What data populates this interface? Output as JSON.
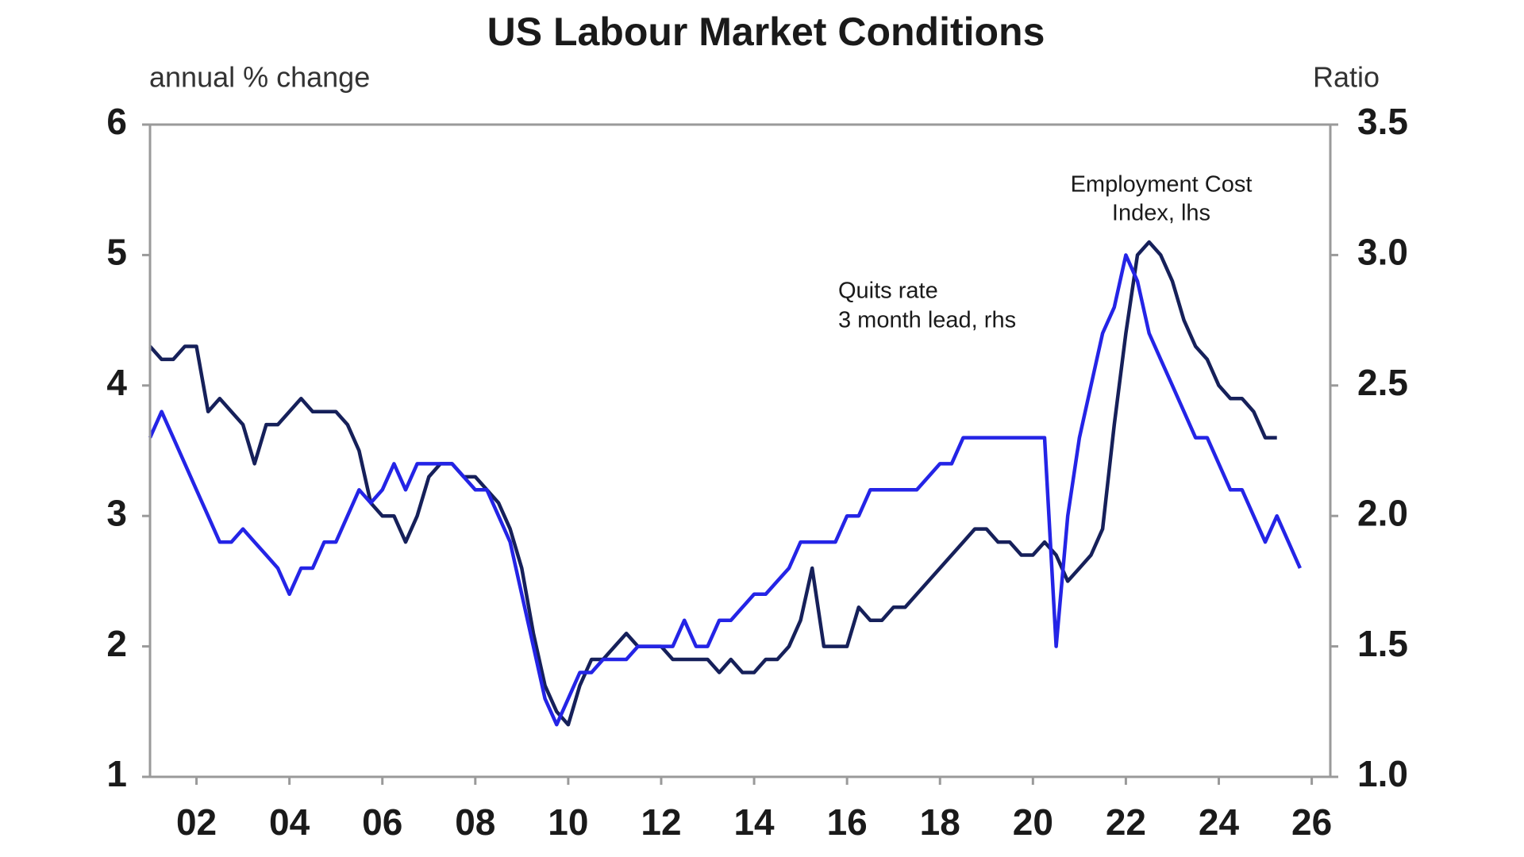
{
  "chart_data": {
    "type": "line",
    "title": "US Labour Market Conditions",
    "ylabel": "annual % change",
    "y2label": "Ratio",
    "xlim": [
      2001,
      2026.4
    ],
    "xticks": [
      {
        "value": 2002,
        "label": "02"
      },
      {
        "value": 2004,
        "label": "04"
      },
      {
        "value": 2006,
        "label": "06"
      },
      {
        "value": 2008,
        "label": "08"
      },
      {
        "value": 2010,
        "label": "10"
      },
      {
        "value": 2012,
        "label": "12"
      },
      {
        "value": 2014,
        "label": "14"
      },
      {
        "value": 2016,
        "label": "16"
      },
      {
        "value": 2018,
        "label": "18"
      },
      {
        "value": 2020,
        "label": "20"
      },
      {
        "value": 2022,
        "label": "22"
      },
      {
        "value": 2024,
        "label": "24"
      },
      {
        "value": 2026,
        "label": "26"
      }
    ],
    "ylim": [
      1,
      6
    ],
    "yticks": [
      1,
      2,
      3,
      4,
      5,
      6
    ],
    "y2lim": [
      1,
      3.5
    ],
    "y2ticks": [
      {
        "value": 1,
        "label": "1.0"
      },
      1.5,
      {
        "value": 2,
        "label": "2.0"
      },
      2.5,
      {
        "value": 3,
        "label": "3.0"
      },
      3.5
    ],
    "annotations": [
      {
        "lines": [
          "Employment Cost",
          "Index, lhs"
        ],
        "color": "#555555"
      },
      {
        "lines": [
          "Quits rate",
          "3 month lead, rhs"
        ],
        "color": "#2a2ae0"
      }
    ],
    "series": [
      {
        "name": "Employment Cost Index, lhs",
        "color": "#16205a",
        "axis": "y",
        "x": [
          2001,
          2001.25,
          2001.5,
          2001.75,
          2002,
          2002.25,
          2002.5,
          2002.75,
          2003,
          2003.25,
          2003.5,
          2003.75,
          2004,
          2004.25,
          2004.5,
          2004.75,
          2005,
          2005.25,
          2005.5,
          2005.75,
          2006,
          2006.25,
          2006.5,
          2006.75,
          2007,
          2007.25,
          2007.5,
          2007.75,
          2008,
          2008.25,
          2008.5,
          2008.75,
          2009,
          2009.25,
          2009.5,
          2009.75,
          2010,
          2010.25,
          2010.5,
          2010.75,
          2011,
          2011.25,
          2011.5,
          2011.75,
          2012,
          2012.25,
          2012.5,
          2012.75,
          2013,
          2013.25,
          2013.5,
          2013.75,
          2014,
          2014.25,
          2014.5,
          2014.75,
          2015,
          2015.25,
          2015.5,
          2015.75,
          2016,
          2016.25,
          2016.5,
          2016.75,
          2017,
          2017.25,
          2017.5,
          2017.75,
          2018,
          2018.25,
          2018.5,
          2018.75,
          2019,
          2019.25,
          2019.5,
          2019.75,
          2020,
          2020.25,
          2020.5,
          2020.75,
          2021,
          2021.25,
          2021.5,
          2021.75,
          2022,
          2022.25,
          2022.5,
          2022.75,
          2023,
          2023.25,
          2023.5,
          2023.75,
          2024,
          2024.25,
          2024.5,
          2024.75,
          2025,
          2025.25
        ],
        "values": [
          4.3,
          4.2,
          4.2,
          4.3,
          4.3,
          3.8,
          3.9,
          3.8,
          3.7,
          3.4,
          3.7,
          3.7,
          3.8,
          3.9,
          3.8,
          3.8,
          3.8,
          3.7,
          3.5,
          3.1,
          3.0,
          3.0,
          2.8,
          3.0,
          3.3,
          3.4,
          3.4,
          3.3,
          3.3,
          3.2,
          3.1,
          2.9,
          2.6,
          2.1,
          1.7,
          1.5,
          1.4,
          1.7,
          1.9,
          1.9,
          2.0,
          2.1,
          2.0,
          2.0,
          2.0,
          1.9,
          1.9,
          1.9,
          1.9,
          1.8,
          1.9,
          1.8,
          1.8,
          1.9,
          1.9,
          2.0,
          2.2,
          2.6,
          2.0,
          2.0,
          2.0,
          2.3,
          2.2,
          2.2,
          2.3,
          2.3,
          2.4,
          2.5,
          2.6,
          2.7,
          2.8,
          2.9,
          2.9,
          2.8,
          2.8,
          2.7,
          2.7,
          2.8,
          2.7,
          2.5,
          2.6,
          2.7,
          2.9,
          3.7,
          4.4,
          5.0,
          5.1,
          5.0,
          4.8,
          4.5,
          4.3,
          4.2,
          4.0,
          3.9,
          3.9,
          3.8,
          3.6,
          3.6
        ]
      },
      {
        "name": "Quits rate 3 month lead, rhs",
        "color": "#2424e6",
        "axis": "y2",
        "x": [
          2001,
          2001.25,
          2001.5,
          2001.75,
          2002,
          2002.25,
          2002.5,
          2002.75,
          2003,
          2003.25,
          2003.5,
          2003.75,
          2004,
          2004.25,
          2004.5,
          2004.75,
          2005,
          2005.25,
          2005.5,
          2005.75,
          2006,
          2006.25,
          2006.5,
          2006.75,
          2007,
          2007.25,
          2007.5,
          2007.75,
          2008,
          2008.25,
          2008.5,
          2008.75,
          2009,
          2009.25,
          2009.5,
          2009.75,
          2010,
          2010.25,
          2010.5,
          2010.75,
          2011,
          2011.25,
          2011.5,
          2011.75,
          2012,
          2012.25,
          2012.5,
          2012.75,
          2013,
          2013.25,
          2013.5,
          2013.75,
          2014,
          2014.25,
          2014.5,
          2014.75,
          2015,
          2015.25,
          2015.5,
          2015.75,
          2016,
          2016.25,
          2016.5,
          2016.75,
          2017,
          2017.25,
          2017.5,
          2017.75,
          2018,
          2018.25,
          2018.5,
          2018.75,
          2019,
          2019.25,
          2019.5,
          2019.75,
          2020,
          2020.25,
          2020.5,
          2020.75,
          2021,
          2021.25,
          2021.5,
          2021.75,
          2022,
          2022.25,
          2022.5,
          2022.75,
          2023,
          2023.25,
          2023.5,
          2023.75,
          2024,
          2024.25,
          2024.5,
          2024.75,
          2025,
          2025.25,
          2025.5,
          2025.75
        ],
        "values": [
          2.3,
          2.4,
          2.3,
          2.2,
          2.1,
          2.0,
          1.9,
          1.9,
          1.95,
          1.9,
          1.85,
          1.8,
          1.7,
          1.8,
          1.8,
          1.9,
          1.9,
          2.0,
          2.1,
          2.05,
          2.1,
          2.2,
          2.1,
          2.2,
          2.2,
          2.2,
          2.2,
          2.15,
          2.1,
          2.1,
          2.0,
          1.9,
          1.7,
          1.5,
          1.3,
          1.2,
          1.3,
          1.4,
          1.4,
          1.45,
          1.45,
          1.45,
          1.5,
          1.5,
          1.5,
          1.5,
          1.6,
          1.5,
          1.5,
          1.6,
          1.6,
          1.65,
          1.7,
          1.7,
          1.75,
          1.8,
          1.9,
          1.9,
          1.9,
          1.9,
          2.0,
          2.0,
          2.1,
          2.1,
          2.1,
          2.1,
          2.1,
          2.15,
          2.2,
          2.2,
          2.3,
          2.3,
          2.3,
          2.3,
          2.3,
          2.3,
          2.3,
          2.3,
          1.5,
          2.0,
          2.3,
          2.5,
          2.7,
          2.8,
          3.0,
          2.9,
          2.7,
          2.6,
          2.5,
          2.4,
          2.3,
          2.3,
          2.2,
          2.1,
          2.1,
          2.0,
          1.9,
          2.0,
          1.9,
          1.8
        ]
      }
    ]
  }
}
